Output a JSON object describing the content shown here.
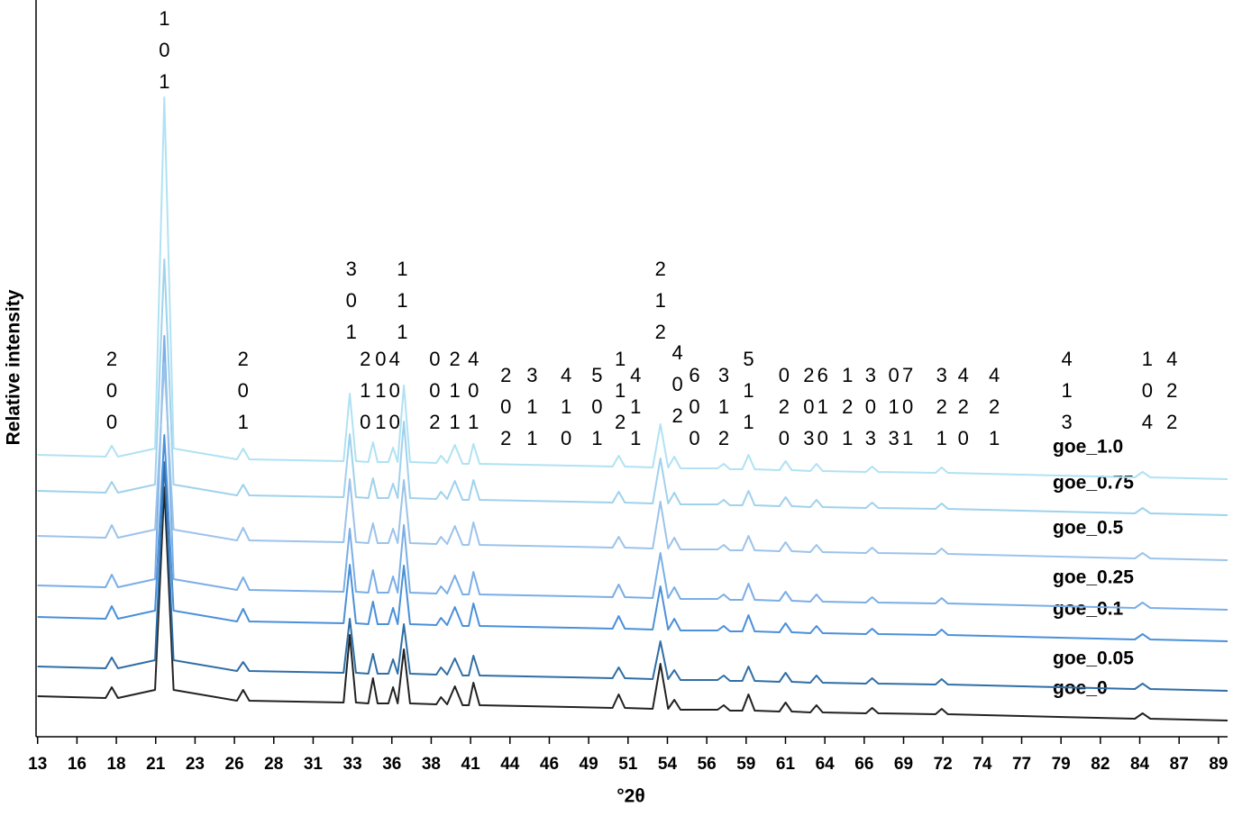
{
  "chart_data": {
    "type": "line",
    "x_label": "°2θ",
    "y_label": "Relative intensity",
    "xlim": [
      12.9,
      90
    ],
    "ylim": [
      0,
      818
    ],
    "xticks": [
      13,
      {
        "value": 15.547,
        "label": "16"
      },
      {
        "value": 18.094,
        "label": "18"
      },
      {
        "value": 20.641,
        "label": "21"
      },
      {
        "value": 23.188,
        "label": "23"
      },
      {
        "value": 25.735,
        "label": "26"
      },
      {
        "value": 28.282,
        "label": "28"
      },
      {
        "value": 30.829,
        "label": "31"
      },
      {
        "value": 33.376,
        "label": "33"
      },
      {
        "value": 35.923,
        "label": "36"
      },
      {
        "value": 38.47,
        "label": "38"
      },
      {
        "value": 41.017,
        "label": "41"
      },
      {
        "value": 43.564,
        "label": "44"
      },
      {
        "value": 46.111,
        "label": "46"
      },
      {
        "value": 48.658,
        "label": "49"
      },
      {
        "value": 51.205,
        "label": "51"
      },
      {
        "value": 53.752,
        "label": "54"
      },
      {
        "value": 56.299,
        "label": "56"
      },
      {
        "value": 58.846,
        "label": "59"
      },
      {
        "value": 61.393,
        "label": "61"
      },
      {
        "value": 63.94,
        "label": "64"
      },
      {
        "value": 66.487,
        "label": "66"
      },
      {
        "value": 69.034,
        "label": "69"
      },
      {
        "value": 71.581,
        "label": "72"
      },
      {
        "value": 74.128,
        "label": "74"
      },
      {
        "value": 76.675,
        "label": "77"
      },
      {
        "value": 79.222,
        "label": "79"
      },
      {
        "value": 81.769,
        "label": "82"
      },
      {
        "value": 84.316,
        "label": "84"
      },
      {
        "value": 86.863,
        "label": "87"
      },
      {
        "value": 89.41,
        "label": "89"
      }
    ],
    "x": [
      13,
      17.4,
      17.8,
      18.2,
      20.6,
      21.2,
      21.8,
      25.9,
      26.3,
      26.7,
      32.8,
      33.2,
      33.6,
      34.4,
      34.7,
      35.0,
      35.7,
      36.0,
      36.3,
      36.7,
      37.1,
      38.8,
      39.1,
      39.5,
      40.0,
      40.5,
      40.9,
      41.2,
      41.6,
      47.5,
      50.2,
      50.6,
      51.0,
      52.8,
      53.3,
      53.8,
      54.2,
      54.6,
      57.0,
      57.4,
      57.8,
      58.6,
      59.0,
      59.4,
      61.0,
      61.4,
      61.8,
      63.0,
      63.4,
      63.8,
      66.6,
      67.0,
      67.4,
      71.1,
      71.5,
      71.9,
      84.0,
      84.5,
      85.0,
      90.0
    ],
    "series": [
      {
        "name": "goe_0",
        "color": "#222222",
        "values": [
          45,
          43,
          55,
          43,
          52,
          277,
          52,
          40,
          52,
          40,
          38,
          113,
          38,
          37,
          65,
          37,
          37,
          55,
          37,
          97,
          37,
          36,
          44,
          36,
          56,
          35,
          35,
          60,
          35,
          33,
          32,
          47,
          32,
          31,
          81,
          31,
          41,
          30,
          30,
          35,
          29,
          29,
          47,
          29,
          28,
          38,
          28,
          27,
          35,
          27,
          26,
          32,
          26,
          25,
          31,
          25,
          20,
          26,
          20,
          18
        ]
      },
      {
        "name": "goe_0.05",
        "color": "#2f6ea6",
        "values": [
          78,
          76,
          88,
          76,
          85,
          305,
          85,
          73,
          83,
          73,
          71,
          131,
          71,
          70,
          92,
          70,
          70,
          86,
          70,
          125,
          70,
          69,
          77,
          69,
          87,
          68,
          68,
          90,
          68,
          66,
          65,
          77,
          65,
          64,
          106,
          64,
          74,
          63,
          63,
          68,
          62,
          62,
          78,
          62,
          61,
          71,
          61,
          60,
          68,
          60,
          59,
          65,
          59,
          58,
          64,
          58,
          53,
          59,
          53,
          51
        ]
      },
      {
        "name": "goe_0.1",
        "color": "#4a90d9",
        "values": [
          133,
          131,
          145,
          131,
          140,
          335,
          140,
          128,
          142,
          128,
          126,
          191,
          126,
          125,
          150,
          125,
          125,
          143,
          125,
          190,
          125,
          124,
          132,
          124,
          144,
          123,
          123,
          148,
          123,
          121,
          120,
          134,
          120,
          119,
          167,
          119,
          131,
          118,
          118,
          123,
          117,
          117,
          135,
          117,
          116,
          126,
          116,
          115,
          123,
          115,
          114,
          120,
          114,
          113,
          119,
          113,
          108,
          114,
          108,
          106
        ]
      },
      {
        "name": "goe_0.25",
        "color": "#7aaee6",
        "values": [
          168,
          166,
          180,
          166,
          175,
          445,
          175,
          163,
          177,
          163,
          161,
          231,
          161,
          160,
          185,
          160,
          160,
          178,
          160,
          235,
          160,
          159,
          167,
          159,
          179,
          158,
          158,
          183,
          158,
          156,
          155,
          169,
          155,
          154,
          204,
          154,
          166,
          153,
          153,
          158,
          152,
          152,
          170,
          152,
          151,
          161,
          151,
          150,
          158,
          150,
          149,
          155,
          149,
          148,
          154,
          148,
          143,
          149,
          143,
          141
        ]
      },
      {
        "name": "goe_0.5",
        "color": "#9cc3ea",
        "values": [
          223,
          221,
          235,
          221,
          230,
          415,
          230,
          218,
          232,
          218,
          216,
          286,
          216,
          215,
          237,
          215,
          215,
          231,
          215,
          285,
          215,
          214,
          222,
          214,
          234,
          213,
          213,
          238,
          213,
          211,
          210,
          222,
          210,
          209,
          261,
          209,
          221,
          208,
          208,
          213,
          207,
          207,
          223,
          207,
          206,
          216,
          206,
          205,
          213,
          205,
          204,
          210,
          204,
          203,
          209,
          203,
          198,
          204,
          198,
          196
        ]
      },
      {
        "name": "goe_0.75",
        "color": "#9fd2ec",
        "values": [
          273,
          271,
          283,
          271,
          280,
          530,
          280,
          268,
          280,
          268,
          266,
          336,
          266,
          265,
          287,
          265,
          265,
          281,
          265,
          350,
          265,
          264,
          272,
          264,
          284,
          263,
          263,
          285,
          263,
          261,
          260,
          272,
          260,
          259,
          309,
          259,
          271,
          258,
          258,
          263,
          257,
          257,
          273,
          257,
          256,
          266,
          256,
          255,
          263,
          255,
          254,
          260,
          254,
          253,
          259,
          253,
          248,
          254,
          248,
          246
        ]
      },
      {
        "name": "goe_1.0",
        "color": "#b0e2f3",
        "values": [
          313,
          311,
          323,
          311,
          320,
          710,
          320,
          308,
          320,
          308,
          306,
          381,
          306,
          305,
          327,
          305,
          305,
          321,
          305,
          390,
          305,
          304,
          312,
          304,
          324,
          303,
          303,
          325,
          303,
          301,
          300,
          312,
          300,
          299,
          347,
          299,
          311,
          298,
          298,
          303,
          297,
          297,
          313,
          297,
          296,
          306,
          296,
          295,
          303,
          295,
          294,
          300,
          294,
          293,
          299,
          293,
          288,
          294,
          288,
          286
        ]
      }
    ],
    "annotations": [
      {
        "x": 17.8,
        "lines": [
          "2",
          "0",
          "0"
        ]
      },
      {
        "x": 21.2,
        "lines": [
          "1",
          "0",
          "1"
        ]
      },
      {
        "x": 26.3,
        "lines": [
          "2",
          "0",
          "1"
        ]
      },
      {
        "x": 33.3,
        "lines": [
          "3",
          "0",
          "1"
        ]
      },
      {
        "x": 34.2,
        "lines": [
          "2",
          "1",
          "0"
        ]
      },
      {
        "x": 35.2,
        "lines": [
          "0",
          "1",
          "1"
        ]
      },
      {
        "x": 36.1,
        "lines": [
          "4",
          "0",
          "0"
        ]
      },
      {
        "x": 36.6,
        "lines": [
          "1",
          "1",
          "1"
        ]
      },
      {
        "x": 38.7,
        "lines": [
          "0",
          "0",
          "2"
        ]
      },
      {
        "x": 40.0,
        "lines": [
          "2",
          "1",
          "1"
        ]
      },
      {
        "x": 41.2,
        "lines": [
          "4",
          "0",
          "1"
        ]
      },
      {
        "x": 43.3,
        "lines": [
          "2",
          "0",
          "2"
        ]
      },
      {
        "x": 45.0,
        "lines": [
          "3",
          "1",
          "1"
        ]
      },
      {
        "x": 47.2,
        "lines": [
          "4",
          "1",
          "0"
        ]
      },
      {
        "x": 49.2,
        "lines": [
          "5",
          "0",
          "1"
        ]
      },
      {
        "x": 50.7,
        "lines": [
          "1",
          "1",
          "2"
        ]
      },
      {
        "x": 51.7,
        "lines": [
          "4",
          "1",
          "1"
        ]
      },
      {
        "x": 53.3,
        "lines": [
          "2",
          "1",
          "2"
        ]
      },
      {
        "x": 54.4,
        "lines": [
          "4",
          "0",
          "2"
        ]
      },
      {
        "x": 55.5,
        "lines": [
          "6",
          "0",
          "0"
        ]
      },
      {
        "x": 57.4,
        "lines": [
          "3",
          "1",
          "2"
        ]
      },
      {
        "x": 59.0,
        "lines": [
          "5",
          "1",
          "1"
        ]
      },
      {
        "x": 61.3,
        "lines": [
          "0",
          "2",
          "0"
        ]
      },
      {
        "x": 62.9,
        "lines": [
          "2",
          "0",
          "3"
        ]
      },
      {
        "x": 63.8,
        "lines": [
          "6",
          "1",
          "0"
        ]
      },
      {
        "x": 65.4,
        "lines": [
          "1",
          "2",
          "1"
        ]
      },
      {
        "x": 66.9,
        "lines": [
          "3",
          "0",
          "3"
        ]
      },
      {
        "x": 68.4,
        "lines": [
          "0",
          "1",
          "3"
        ]
      },
      {
        "x": 69.3,
        "lines": [
          "7",
          "0",
          "1"
        ]
      },
      {
        "x": 71.5,
        "lines": [
          "3",
          "2",
          "1"
        ]
      },
      {
        "x": 72.9,
        "lines": [
          "4",
          "2",
          "0"
        ]
      },
      {
        "x": 74.9,
        "lines": [
          "4",
          "2",
          "1"
        ]
      },
      {
        "x": 79.6,
        "lines": [
          "4",
          "1",
          "3"
        ]
      },
      {
        "x": 84.8,
        "lines": [
          "1",
          "0",
          "4"
        ]
      },
      {
        "x": 86.4,
        "lines": [
          "4",
          "2",
          "2"
        ]
      }
    ]
  }
}
